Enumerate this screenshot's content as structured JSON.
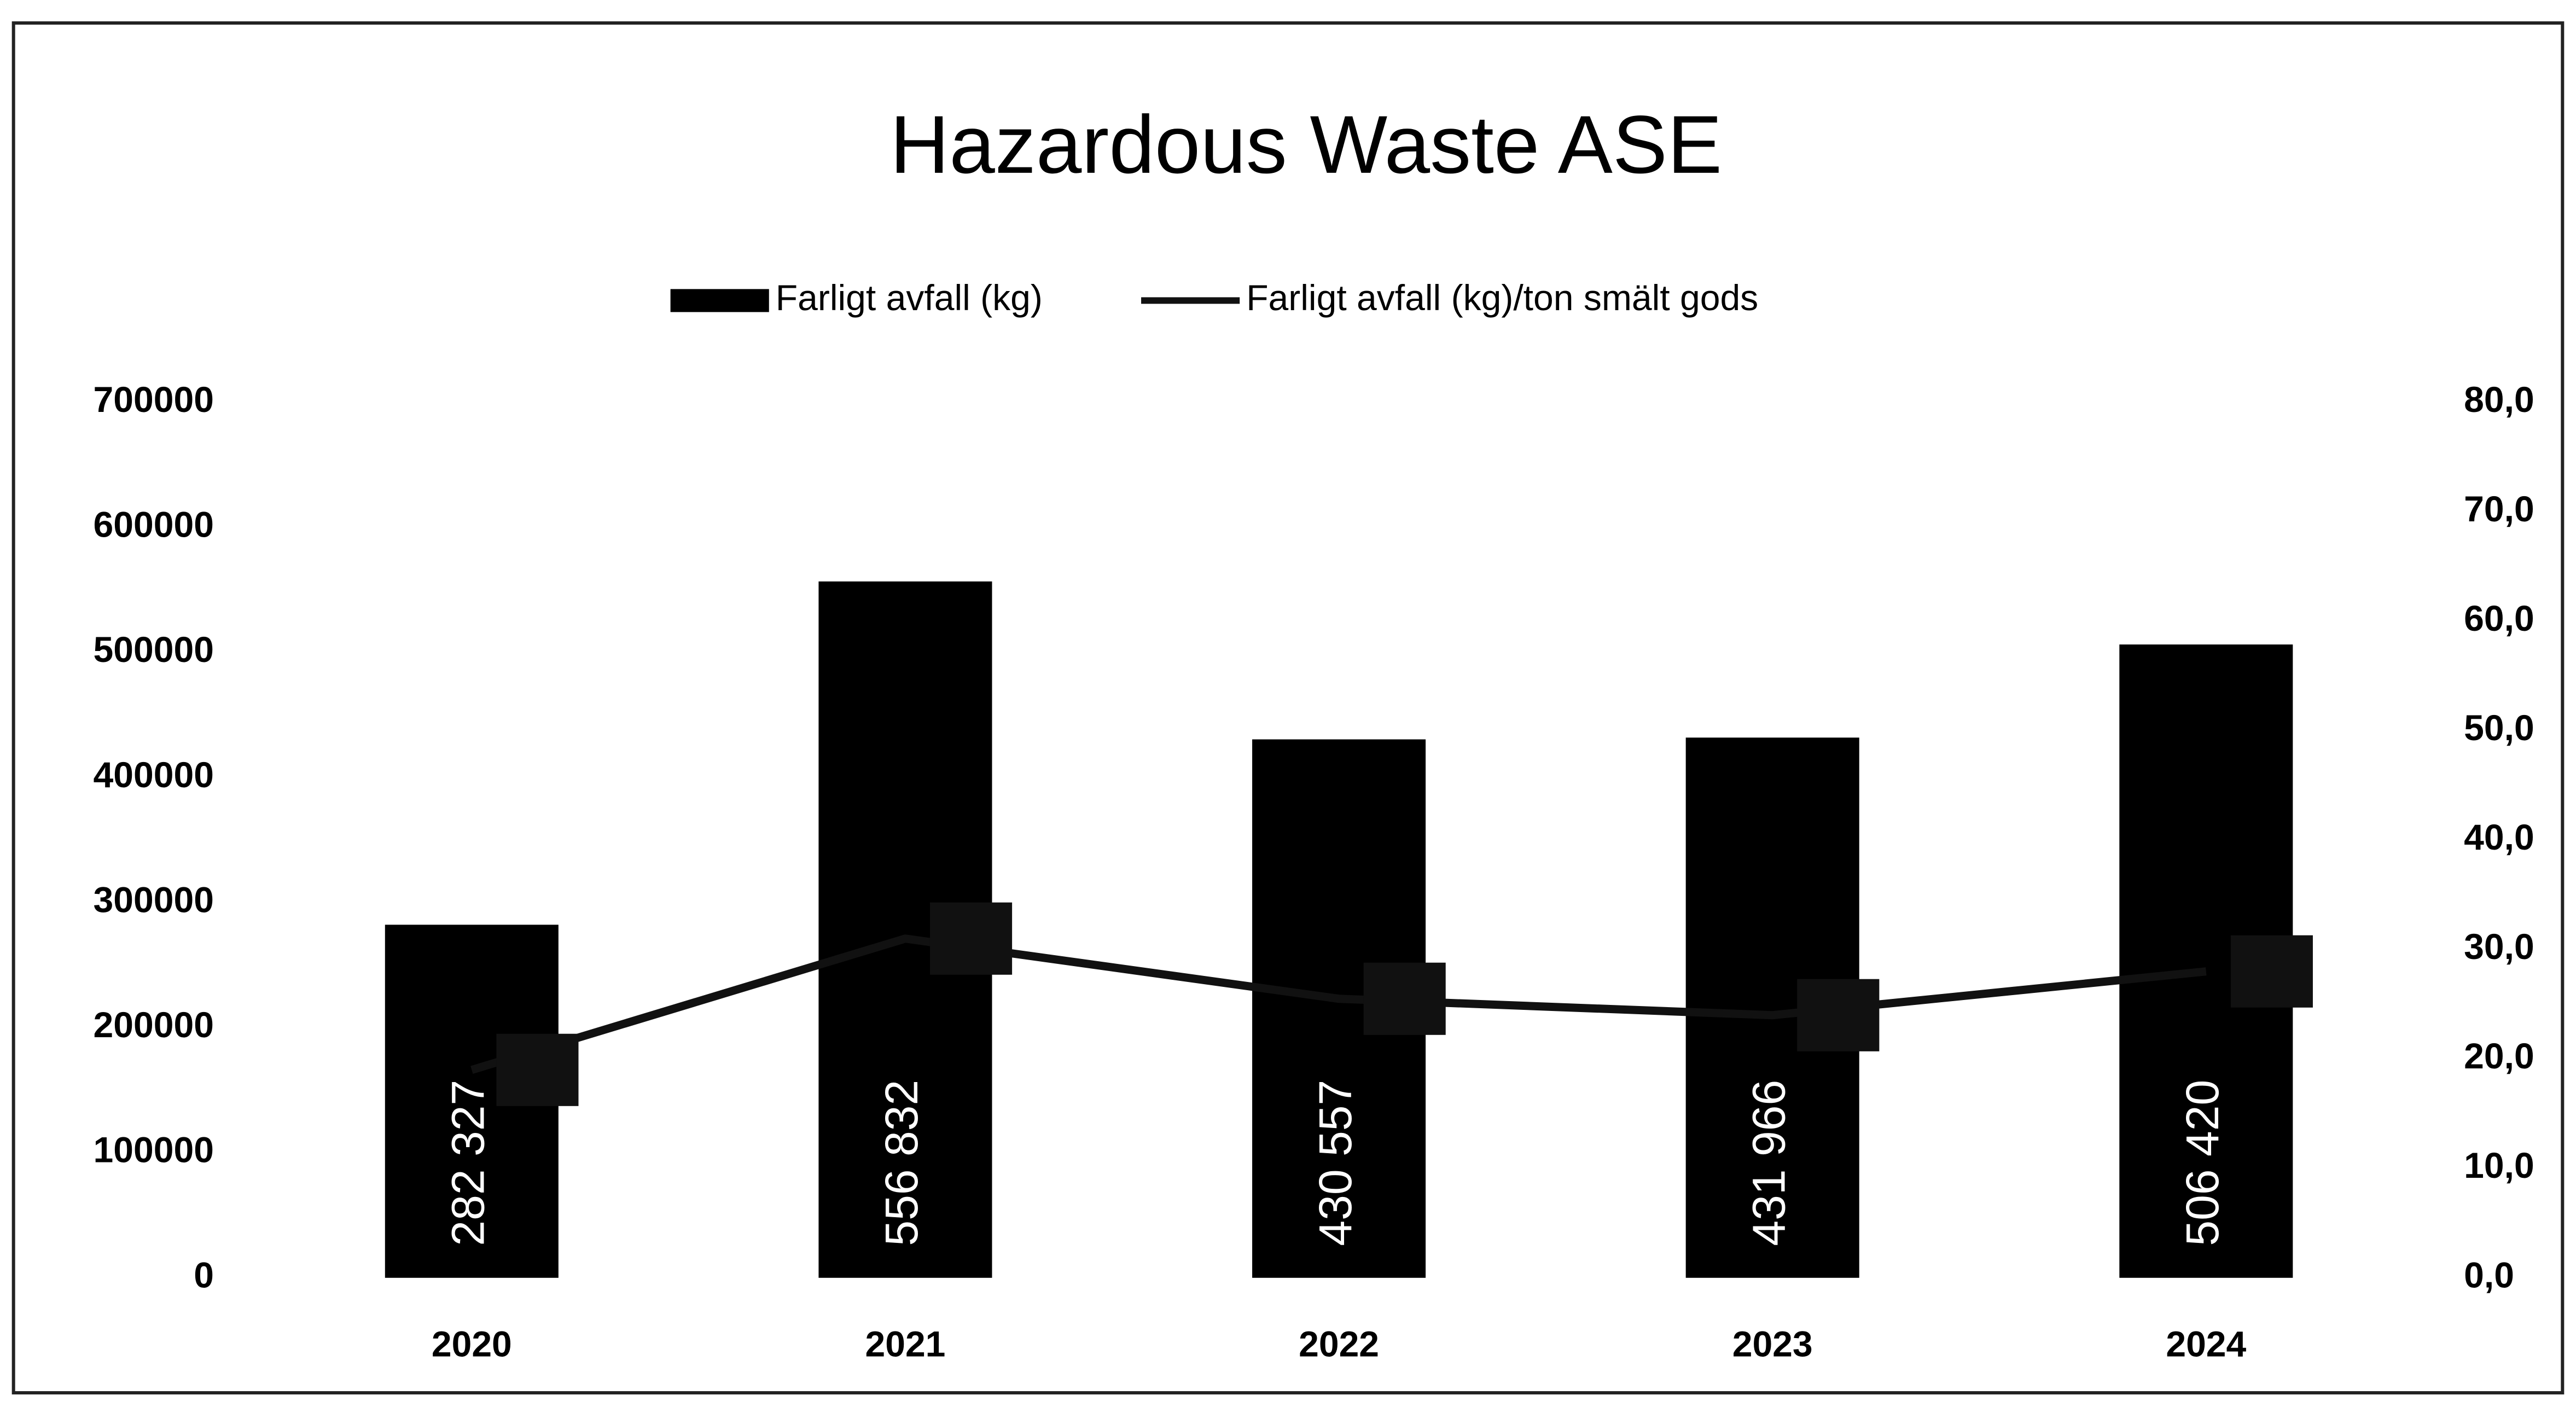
{
  "chart_data": {
    "type": "bar",
    "title": "Hazardous Waste ASE",
    "categories": [
      "2020",
      "2021",
      "2022",
      "2023",
      "2024"
    ],
    "series": [
      {
        "name": "Farligt avfall (kg)",
        "type": "bar",
        "color": "#000000",
        "values": [
          282327,
          556832,
          430557,
          431966,
          506420
        ],
        "value_labels": [
          "282 327",
          "556 832",
          "430 557",
          "431 966",
          "506 420"
        ]
      },
      {
        "name": "Farligt avfall (kg)/ton smält gods",
        "type": "line",
        "axis": "y2",
        "color": "#111111",
        "values": [
          19,
          31,
          25.5,
          24,
          28
        ]
      }
    ],
    "ylim": [
      0,
      700000
    ],
    "yticks": [
      0,
      100000,
      200000,
      300000,
      400000,
      500000,
      600000,
      700000
    ],
    "y2lim": [
      0,
      80
    ],
    "y2ticks": [
      {
        "value": 0,
        "label": "0,0"
      },
      {
        "value": 10,
        "label": "10,0"
      },
      {
        "value": 20,
        "label": "20,0"
      },
      {
        "value": 30,
        "label": "30,0"
      },
      {
        "value": 40,
        "label": "40,0"
      },
      {
        "value": 50,
        "label": "50,0"
      },
      {
        "value": 60,
        "label": "60,0"
      },
      {
        "value": 70,
        "label": "70,0"
      },
      {
        "value": 80,
        "label": "80,0"
      }
    ],
    "legend": "top",
    "grid": false
  }
}
